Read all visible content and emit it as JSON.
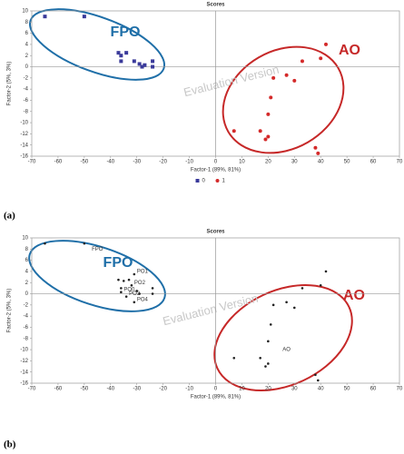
{
  "chart_data": [
    {
      "type": "scatter",
      "title": "Scores",
      "xlabel": "Factor-1 (89%, 81%)",
      "ylabel": "Factor-2 (5%, 3%)",
      "xlim": [
        -70,
        70
      ],
      "ylim": [
        -16,
        10
      ],
      "xticks": [
        -70,
        -60,
        -50,
        -40,
        -30,
        -20,
        -10,
        0,
        10,
        20,
        30,
        40,
        50,
        60,
        70
      ],
      "yticks": [
        -16,
        -14,
        -12,
        -10,
        -8,
        -6,
        -4,
        -2,
        0,
        2,
        4,
        6,
        8,
        10
      ],
      "zero_lines": true,
      "legend": "bottom",
      "series": [
        {
          "name": "0",
          "color": "#3a3a9a",
          "marker": "square",
          "x": [
            -65,
            -50,
            -37,
            -36,
            -36,
            -34,
            -31,
            -29,
            -28,
            -27,
            -24,
            -24
          ],
          "values": [
            9,
            9,
            2.5,
            2,
            1,
            2.5,
            1,
            0.5,
            0,
            0.3,
            1,
            0
          ]
        },
        {
          "name": "1",
          "color": "#d42a2a",
          "marker": "circle",
          "x": [
            7,
            17,
            19,
            20,
            20,
            21,
            22,
            27,
            30,
            33,
            38,
            39,
            40,
            42
          ],
          "values": [
            -11.5,
            -11.5,
            -13,
            -12.5,
            -8.5,
            -5.5,
            -2,
            -1.5,
            -2.5,
            1,
            -14.5,
            -15.5,
            1.5,
            4
          ]
        }
      ],
      "group_labels": [
        {
          "text": "FPO",
          "color": "#1f6fa8"
        },
        {
          "text": "AO",
          "color": "#c62828"
        }
      ],
      "watermark": "Evaluation Version",
      "panel": "(a)"
    },
    {
      "type": "scatter",
      "title": "Scores",
      "xlabel": "Factor-1 (89%, 81%)",
      "ylabel": "Factor-2 (5%, 3%)",
      "xlim": [
        -70,
        70
      ],
      "ylim": [
        -16,
        10
      ],
      "xticks": [
        -70,
        -60,
        -50,
        -40,
        -30,
        -20,
        -10,
        0,
        10,
        20,
        30,
        40,
        50,
        60,
        70
      ],
      "yticks": [
        -16,
        -14,
        -12,
        -10,
        -8,
        -6,
        -4,
        -2,
        0,
        2,
        4,
        6,
        8,
        10
      ],
      "zero_lines": true,
      "series": [
        {
          "color": "#222222",
          "marker": "dot",
          "x": [
            -65,
            -50,
            -37,
            -35,
            -33,
            -31,
            -32,
            -36,
            -36,
            -34,
            -30,
            -29,
            -31,
            -24,
            -24,
            7,
            17,
            19,
            20,
            20,
            21,
            22,
            27,
            30,
            33,
            38,
            39,
            40,
            42
          ],
          "values": [
            9,
            9,
            2.5,
            2.3,
            2.5,
            3.5,
            1.5,
            1,
            0.3,
            -0.5,
            0.5,
            0,
            -1.5,
            1,
            0,
            -11.5,
            -11.5,
            -13,
            -12.5,
            -8.5,
            -5.5,
            -2,
            -1.5,
            -2.5,
            1,
            -14.5,
            -15.5,
            1.5,
            4
          ],
          "labels": [
            null,
            null,
            null,
            null,
            null,
            "PO1",
            "PO2",
            null,
            "PO0",
            "PO3",
            null,
            null,
            "PO4",
            null,
            null,
            null,
            null,
            null,
            null,
            null,
            null,
            null,
            null,
            null,
            null,
            null,
            null,
            null,
            null
          ]
        }
      ],
      "annotations": [
        {
          "text": "FPO",
          "x": -45,
          "y": 8
        },
        {
          "text": "AO",
          "x": 27,
          "y": -10
        }
      ],
      "group_labels": [
        {
          "text": "FPO",
          "color": "#1f6fa8"
        },
        {
          "text": "AO",
          "color": "#c62828"
        }
      ],
      "watermark": "Evaluation Version",
      "panel": "(b)"
    }
  ]
}
